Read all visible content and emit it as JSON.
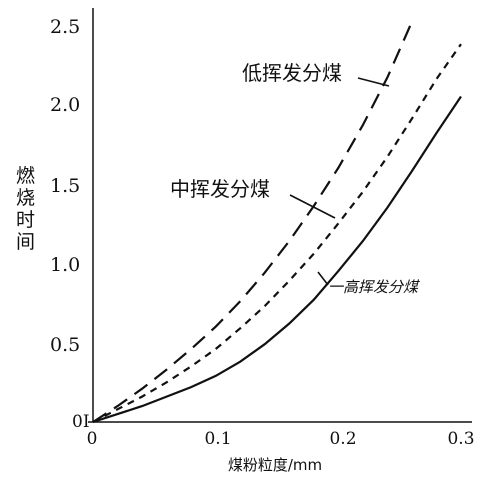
{
  "chart_data": {
    "type": "line",
    "xlabel": "煤粉粒度/mm",
    "ylabel": "燃烧时间",
    "xlim": [
      0,
      0.3
    ],
    "ylim": [
      0,
      2.6
    ],
    "x_ticks": [
      "0",
      "0.1",
      "0.2",
      "0.3"
    ],
    "y_ticks": [
      "2.5",
      "2.0",
      "1.5",
      "1.0",
      "0.5",
      "0I"
    ],
    "grid": false,
    "series": [
      {
        "name": "低挥发分煤",
        "style": "long-dash",
        "x": [
          0,
          0.02,
          0.04,
          0.06,
          0.08,
          0.1,
          0.12,
          0.14,
          0.16,
          0.18,
          0.2,
          0.22,
          0.24,
          0.26
        ],
        "y": [
          0,
          0.1,
          0.21,
          0.33,
          0.46,
          0.6,
          0.76,
          0.94,
          1.14,
          1.36,
          1.6,
          1.87,
          2.17,
          2.52
        ]
      },
      {
        "name": "中挥发分煤",
        "style": "short-dash",
        "x": [
          0,
          0.02,
          0.04,
          0.06,
          0.08,
          0.1,
          0.12,
          0.14,
          0.16,
          0.18,
          0.2,
          0.22,
          0.24,
          0.26,
          0.28,
          0.3
        ],
        "y": [
          0,
          0.08,
          0.16,
          0.25,
          0.35,
          0.46,
          0.59,
          0.73,
          0.89,
          1.06,
          1.25,
          1.45,
          1.67,
          1.91,
          2.16,
          2.38
        ]
      },
      {
        "name": "高挥发分煤",
        "style": "solid",
        "x": [
          0,
          0.02,
          0.04,
          0.06,
          0.08,
          0.1,
          0.12,
          0.14,
          0.16,
          0.18,
          0.2,
          0.22,
          0.24,
          0.26,
          0.28,
          0.3
        ],
        "y": [
          0,
          0.05,
          0.1,
          0.16,
          0.22,
          0.29,
          0.38,
          0.49,
          0.62,
          0.77,
          0.95,
          1.14,
          1.35,
          1.58,
          1.82,
          2.05
        ]
      }
    ],
    "annotations": [
      {
        "text": "低挥发分煤",
        "series": 0,
        "target_x": 0.235,
        "target_y": 2.0
      },
      {
        "text": "中挥发分煤",
        "series": 1,
        "target_x": 0.195,
        "target_y": 1.25
      },
      {
        "text": "一高挥发分煤",
        "series": 2,
        "target_x": 0.18,
        "target_y": 0.85
      }
    ]
  }
}
